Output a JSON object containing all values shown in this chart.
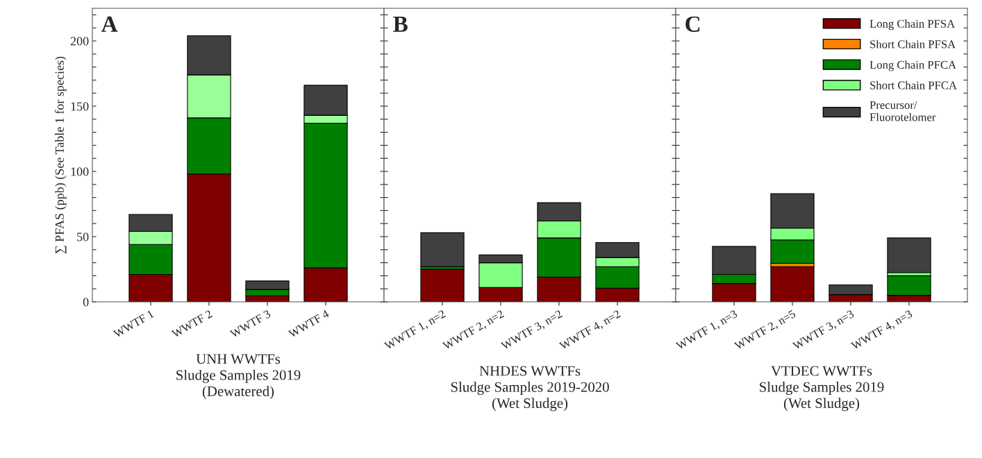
{
  "chart_data": [
    {
      "type": "bar",
      "stacked": true,
      "ylabel": "∑ PFAS (ppb) (See Table 1 for species)",
      "xlabel": "UNH WWTFs\nSludge Samples 2019\n(Dewatered)",
      "annotations": [
        "A"
      ],
      "categories": [
        "WWTF 1",
        "WWTF 2",
        "WWTF 3",
        "WWTF 4"
      ],
      "ylim": [
        0,
        225
      ],
      "yticks": [
        0,
        {
          "value": 10,
          "label": null
        },
        {
          "value": 20,
          "label": null
        },
        {
          "value": 30,
          "label": null
        },
        {
          "value": 40,
          "label": null
        },
        50,
        {
          "value": 60,
          "label": null
        },
        {
          "value": 70,
          "label": null
        },
        {
          "value": 80,
          "label": null
        },
        {
          "value": 90,
          "label": null
        },
        100,
        {
          "value": 110,
          "label": null
        },
        {
          "value": 120,
          "label": null
        },
        {
          "value": 130,
          "label": null
        },
        {
          "value": 140,
          "label": null
        },
        150,
        {
          "value": 160,
          "label": null
        },
        {
          "value": 170,
          "label": null
        },
        {
          "value": 180,
          "label": null
        },
        {
          "value": 190,
          "label": null
        },
        200,
        {
          "value": 210,
          "label": null
        },
        {
          "value": 220,
          "label": null
        }
      ],
      "grid": false,
      "legend": false,
      "series": [
        {
          "color": "#800000",
          "values": [
            21,
            98,
            4.5,
            26
          ]
        },
        {
          "color": "#ff8000",
          "values": [
            0,
            0,
            0,
            0
          ]
        },
        {
          "color": "#008000",
          "values": [
            23,
            43,
            5,
            111
          ]
        },
        {
          "color": "#99ff99",
          "values": [
            10,
            33,
            0,
            6
          ]
        },
        {
          "color": "#404040",
          "values": [
            13,
            30,
            6.5,
            23
          ]
        }
      ]
    },
    {
      "type": "bar",
      "stacked": true,
      "xlabel": "NHDES WWTFs\nSludge Samples 2019-2020\n(Wet Sludge)",
      "annotations": [
        "B"
      ],
      "tick_labels": "x",
      "categories": [
        "WWTF 1, n=2",
        "WWTF 2, n=2",
        "WWTF 3, n=2",
        "WWTF 4, n=2"
      ],
      "ylim": [
        0,
        225
      ],
      "yticks": [
        0,
        {
          "value": 10,
          "label": null
        },
        {
          "value": 20,
          "label": null
        },
        {
          "value": 30,
          "label": null
        },
        {
          "value": 40,
          "label": null
        },
        50,
        {
          "value": 60,
          "label": null
        },
        {
          "value": 70,
          "label": null
        },
        {
          "value": 80,
          "label": null
        },
        {
          "value": 90,
          "label": null
        },
        100,
        {
          "value": 110,
          "label": null
        },
        {
          "value": 120,
          "label": null
        },
        {
          "value": 130,
          "label": null
        },
        {
          "value": 140,
          "label": null
        },
        150,
        {
          "value": 160,
          "label": null
        },
        {
          "value": 170,
          "label": null
        },
        {
          "value": 180,
          "label": null
        },
        {
          "value": 190,
          "label": null
        },
        200,
        {
          "value": 210,
          "label": null
        },
        {
          "value": 220,
          "label": null
        }
      ],
      "grid": false,
      "legend": false,
      "series": [
        {
          "color": "#800000",
          "values": [
            25,
            11,
            19,
            10.5
          ]
        },
        {
          "color": "#ff8000",
          "values": [
            0,
            0,
            0,
            0
          ]
        },
        {
          "color": "#008000",
          "values": [
            2,
            0,
            30,
            16.5
          ]
        },
        {
          "color": "#80ff80",
          "values": [
            0,
            19,
            13,
            7
          ]
        },
        {
          "color": "#404040",
          "values": [
            26,
            6,
            14,
            11.5
          ]
        }
      ]
    },
    {
      "type": "bar",
      "stacked": true,
      "xlabel": "VTDEC WWTFs\nSludge Samples 2019\n(Wet Sludge)",
      "annotations": [
        "C"
      ],
      "tick_labels": "x",
      "categories": [
        "WWTF 1, n=3",
        "WWTF 2, n=5",
        "WWTF 3, n=3",
        "WWTF 4, n=3"
      ],
      "ylim": [
        0,
        225
      ],
      "yticks": [
        0,
        {
          "value": 10,
          "label": null
        },
        {
          "value": 20,
          "label": null
        },
        {
          "value": 30,
          "label": null
        },
        {
          "value": 40,
          "label": null
        },
        50,
        {
          "value": 60,
          "label": null
        },
        {
          "value": 70,
          "label": null
        },
        {
          "value": 80,
          "label": null
        },
        {
          "value": 90,
          "label": null
        },
        100,
        {
          "value": 110,
          "label": null
        },
        {
          "value": 120,
          "label": null
        },
        {
          "value": 130,
          "label": null
        },
        {
          "value": 140,
          "label": null
        },
        150,
        {
          "value": 160,
          "label": null
        },
        {
          "value": 170,
          "label": null
        },
        {
          "value": 180,
          "label": null
        },
        {
          "value": 190,
          "label": null
        },
        200,
        {
          "value": 210,
          "label": null
        },
        {
          "value": 220,
          "label": null
        }
      ],
      "grid": false,
      "legend": "top right",
      "series": [
        {
          "name": "Long Chain PFSA",
          "color": "#800000",
          "values": [
            14,
            27,
            5.5,
            5
          ]
        },
        {
          "name": "Short Chain PFSA",
          "color": "#ff8000",
          "values": [
            0,
            2.5,
            0,
            0
          ]
        },
        {
          "name": "Long Chain PFCA",
          "color": "#008000",
          "values": [
            7,
            18,
            0,
            15
          ]
        },
        {
          "name": "Short Chain PFCA",
          "color": "#80ff80",
          "values": [
            0,
            9,
            0,
            2.5
          ]
        },
        {
          "name": "Precursor/\nFluorotelomer",
          "color": "#404040",
          "values": [
            21.5,
            26.5,
            7.5,
            26.5
          ]
        }
      ]
    }
  ]
}
